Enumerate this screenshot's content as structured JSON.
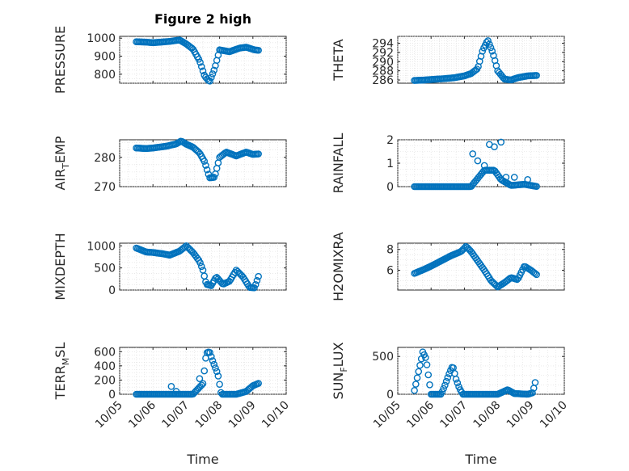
{
  "chart_data": {
    "type": "scatter",
    "title": "Figure 2 high",
    "xlabel": "Time",
    "x_ticks": [
      "10/05",
      "10/06",
      "10/07",
      "10/08",
      "10/09",
      "10/10"
    ],
    "xlim_days": [
      0,
      5
    ],
    "marker_color": "#0072BD",
    "panels": [
      {
        "id": "pressure",
        "ylabel": "PRESSURE",
        "ylim": [
          750,
          1010
        ],
        "yticks": [
          800,
          900,
          1000
        ],
        "samples": [
          [
            0.5,
            980
          ],
          [
            0.8,
            978
          ],
          [
            1.0,
            975
          ],
          [
            1.5,
            982
          ],
          [
            1.8,
            990
          ],
          [
            2.0,
            968
          ],
          [
            2.2,
            940
          ],
          [
            2.4,
            875
          ],
          [
            2.55,
            790
          ],
          [
            2.7,
            758
          ],
          [
            2.85,
            830
          ],
          [
            3.0,
            935
          ],
          [
            3.3,
            925
          ],
          [
            3.6,
            945
          ],
          [
            3.8,
            950
          ],
          [
            4.05,
            935
          ],
          [
            4.2,
            932
          ]
        ],
        "spikes": []
      },
      {
        "id": "theta",
        "ylabel": "THETA",
        "ylim": [
          285.3,
          295.5
        ],
        "yticks": [
          286,
          288,
          290,
          292,
          294
        ],
        "samples": [
          [
            0.5,
            285.9
          ],
          [
            0.8,
            286.0
          ],
          [
            1.0,
            286.1
          ],
          [
            1.4,
            286.3
          ],
          [
            1.7,
            286.5
          ],
          [
            2.0,
            286.9
          ],
          [
            2.2,
            287.4
          ],
          [
            2.4,
            288.5
          ],
          [
            2.55,
            292.5
          ],
          [
            2.7,
            294.7
          ],
          [
            2.85,
            292.0
          ],
          [
            3.0,
            288.0
          ],
          [
            3.2,
            286.2
          ],
          [
            3.4,
            286.0
          ],
          [
            3.6,
            286.5
          ],
          [
            3.9,
            286.9
          ],
          [
            4.2,
            287.0
          ]
        ],
        "spikes": []
      },
      {
        "id": "airtemp",
        "ylabel_main": "AIR",
        "ylabel_sub": "T",
        "ylabel_rest": "EMP",
        "ylim": [
          270,
          286
        ],
        "yticks": [
          270,
          280
        ],
        "samples": [
          [
            0.5,
            283.2
          ],
          [
            0.8,
            283.0
          ],
          [
            1.0,
            283.2
          ],
          [
            1.4,
            283.8
          ],
          [
            1.7,
            284.6
          ],
          [
            1.85,
            285.6
          ],
          [
            2.0,
            284.5
          ],
          [
            2.2,
            283.5
          ],
          [
            2.4,
            281.5
          ],
          [
            2.55,
            278.5
          ],
          [
            2.7,
            273.0
          ],
          [
            2.85,
            273.2
          ],
          [
            3.0,
            280.0
          ],
          [
            3.2,
            281.8
          ],
          [
            3.5,
            280.5
          ],
          [
            3.8,
            281.8
          ],
          [
            4.0,
            281.0
          ],
          [
            4.2,
            281.2
          ]
        ],
        "spikes": []
      },
      {
        "id": "rainfall",
        "ylabel": "RAINFALL",
        "ylim": [
          0,
          2
        ],
        "yticks": [
          0,
          1,
          2
        ],
        "samples": [
          [
            0.5,
            0
          ],
          [
            2.2,
            0
          ],
          [
            2.6,
            0.7
          ],
          [
            2.9,
            0.7
          ],
          [
            3.1,
            0.3
          ],
          [
            3.4,
            0.05
          ],
          [
            3.8,
            0.1
          ],
          [
            4.2,
            0
          ]
        ],
        "spikes": [
          [
            2.25,
            1.4
          ],
          [
            2.4,
            1.1
          ],
          [
            2.6,
            0.9
          ],
          [
            2.75,
            1.8
          ],
          [
            2.9,
            1.7
          ],
          [
            3.1,
            1.9
          ],
          [
            3.25,
            0.4
          ],
          [
            3.5,
            0.4
          ],
          [
            3.9,
            0.3
          ]
        ]
      },
      {
        "id": "mixdepth",
        "ylabel": "MIXDEPTH",
        "ylim": [
          0,
          1060
        ],
        "yticks": [
          0,
          500,
          1000
        ],
        "samples": [
          [
            0.5,
            950
          ],
          [
            0.8,
            860
          ],
          [
            1.0,
            850
          ],
          [
            1.3,
            820
          ],
          [
            1.5,
            790
          ],
          [
            1.8,
            880
          ],
          [
            2.0,
            1000
          ],
          [
            2.2,
            850
          ],
          [
            2.4,
            650
          ],
          [
            2.5,
            450
          ],
          [
            2.6,
            130
          ],
          [
            2.75,
            100
          ],
          [
            2.9,
            300
          ],
          [
            3.1,
            130
          ],
          [
            3.3,
            200
          ],
          [
            3.5,
            450
          ],
          [
            3.7,
            300
          ],
          [
            3.9,
            60
          ],
          [
            4.05,
            50
          ],
          [
            4.2,
            380
          ]
        ],
        "spikes": []
      },
      {
        "id": "h2omixra",
        "ylabel": "H2OMIXRA",
        "ylim": [
          4.1,
          8.6
        ],
        "yticks": [
          6,
          8
        ],
        "samples": [
          [
            0.5,
            5.7
          ],
          [
            0.8,
            6.1
          ],
          [
            1.0,
            6.4
          ],
          [
            1.3,
            6.9
          ],
          [
            1.6,
            7.4
          ],
          [
            1.9,
            7.8
          ],
          [
            2.05,
            8.3
          ],
          [
            2.2,
            7.8
          ],
          [
            2.4,
            6.9
          ],
          [
            2.6,
            6.0
          ],
          [
            2.8,
            5.0
          ],
          [
            3.0,
            4.4
          ],
          [
            3.2,
            4.8
          ],
          [
            3.4,
            5.3
          ],
          [
            3.6,
            5.1
          ],
          [
            3.8,
            6.4
          ],
          [
            4.0,
            6.0
          ],
          [
            4.2,
            5.5
          ]
        ],
        "spikes": []
      },
      {
        "id": "terrmsl",
        "ylabel_main": "TERR",
        "ylabel_sub": "M",
        "ylabel_rest": "SL",
        "ylim": [
          0,
          660
        ],
        "yticks": [
          0,
          200,
          400,
          600
        ],
        "samples": [
          [
            0.5,
            0
          ],
          [
            2.2,
            0
          ],
          [
            2.5,
            150
          ],
          [
            2.6,
            580
          ],
          [
            2.7,
            600
          ],
          [
            2.8,
            460
          ],
          [
            2.95,
            280
          ],
          [
            3.05,
            0
          ],
          [
            3.5,
            0
          ],
          [
            3.8,
            40
          ],
          [
            4.0,
            120
          ],
          [
            4.2,
            160
          ]
        ],
        "spikes": [
          [
            1.55,
            110
          ],
          [
            1.7,
            40
          ],
          [
            2.4,
            220
          ]
        ]
      },
      {
        "id": "sunflux",
        "ylabel_main": "SUN",
        "ylabel_sub": "F",
        "ylabel_rest": "LUX",
        "ylim": [
          0,
          620
        ],
        "yticks": [
          0,
          500
        ],
        "samples": [
          [
            0.5,
            50
          ],
          [
            0.6,
            250
          ],
          [
            0.7,
            450
          ],
          [
            0.75,
            560
          ],
          [
            0.85,
            470
          ],
          [
            0.95,
            150
          ],
          [
            1.0,
            0
          ],
          [
            1.3,
            0
          ],
          [
            1.4,
            100
          ],
          [
            1.55,
            280
          ],
          [
            1.65,
            380
          ],
          [
            1.75,
            200
          ],
          [
            1.85,
            80
          ],
          [
            1.95,
            0
          ],
          [
            2.5,
            0
          ],
          [
            3.0,
            0
          ],
          [
            3.3,
            60
          ],
          [
            3.5,
            10
          ],
          [
            3.9,
            0
          ],
          [
            4.05,
            20
          ],
          [
            4.15,
            200
          ]
        ],
        "spikes": []
      }
    ]
  }
}
